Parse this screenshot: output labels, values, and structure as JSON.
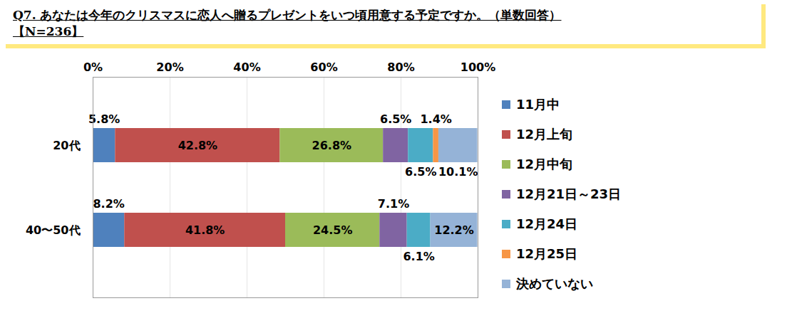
{
  "chart_data": {
    "type": "bar",
    "title": "Q7. あなたは今年のクリスマスに恋人へ贈るプレゼントをいつ頃用意する予定ですか。（単数回答）",
    "subtitle": "【N=236】",
    "orientation": "horizontal",
    "stacked": true,
    "data_labels": true,
    "grid": true,
    "legend": "right",
    "categories": [
      "20代",
      "40〜50代"
    ],
    "xlim": [
      0,
      100
    ],
    "xticks": [
      {
        "value": 0,
        "label": "0%"
      },
      {
        "value": 20,
        "label": "20%"
      },
      {
        "value": 40,
        "label": "40%"
      },
      {
        "value": 60,
        "label": "60%"
      },
      {
        "value": 80,
        "label": "80%"
      },
      {
        "value": 100,
        "label": "100%"
      }
    ],
    "series": [
      {
        "name": "11月中",
        "color": "#4f81bd",
        "values": [
          5.8,
          8.2
        ],
        "value_labels": [
          "5.8%",
          "8.2%"
        ]
      },
      {
        "name": "12月上旬",
        "color": "#c0504d",
        "values": [
          42.8,
          41.8
        ],
        "value_labels": [
          "42.8%",
          "41.8%"
        ]
      },
      {
        "name": "12月中旬",
        "color": "#9bbb59",
        "values": [
          26.8,
          24.5
        ],
        "value_labels": [
          "26.8%",
          "24.5%"
        ]
      },
      {
        "name": "12月21日～23日",
        "color": "#8064a2",
        "values": [
          6.5,
          7.1
        ],
        "value_labels": [
          "6.5%",
          "7.1%"
        ]
      },
      {
        "name": "12月24日",
        "color": "#4bacc6",
        "values": [
          6.5,
          6.1
        ],
        "value_labels": [
          "6.5%",
          "6.1%"
        ]
      },
      {
        "name": "12月25日",
        "color": "#f79646",
        "values": [
          1.4,
          0
        ],
        "value_labels": [
          "1.4%",
          null
        ]
      },
      {
        "name": "決めていない",
        "color": "#95b3d7",
        "values": [
          10.1,
          12.2
        ],
        "value_labels": [
          "10.1%",
          "12.2%"
        ]
      }
    ]
  }
}
